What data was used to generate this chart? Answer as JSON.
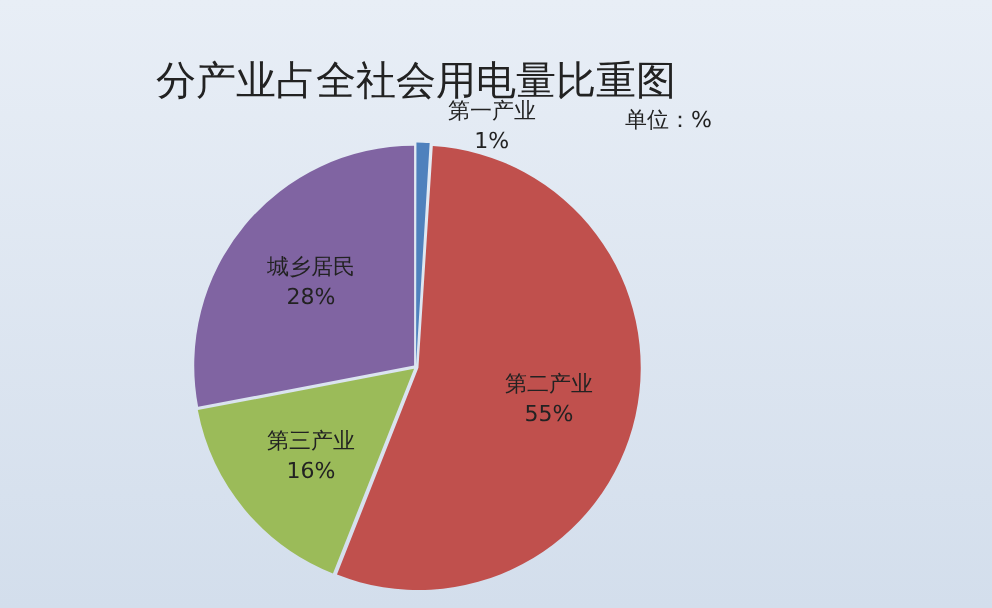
{
  "chart_data": {
    "type": "pie",
    "title": "分产业占全社会用电量比重图",
    "subtitle": "单位：%",
    "categories": [
      "第一产业",
      "第二产业",
      "第三产业",
      "城乡居民"
    ],
    "values": [
      1,
      55,
      16,
      28
    ],
    "colors": [
      "#4f81bd",
      "#c0504d",
      "#9bbb59",
      "#8064a2"
    ],
    "value_labels": [
      "1%",
      "55%",
      "16%",
      "28%"
    ],
    "legend": false
  }
}
